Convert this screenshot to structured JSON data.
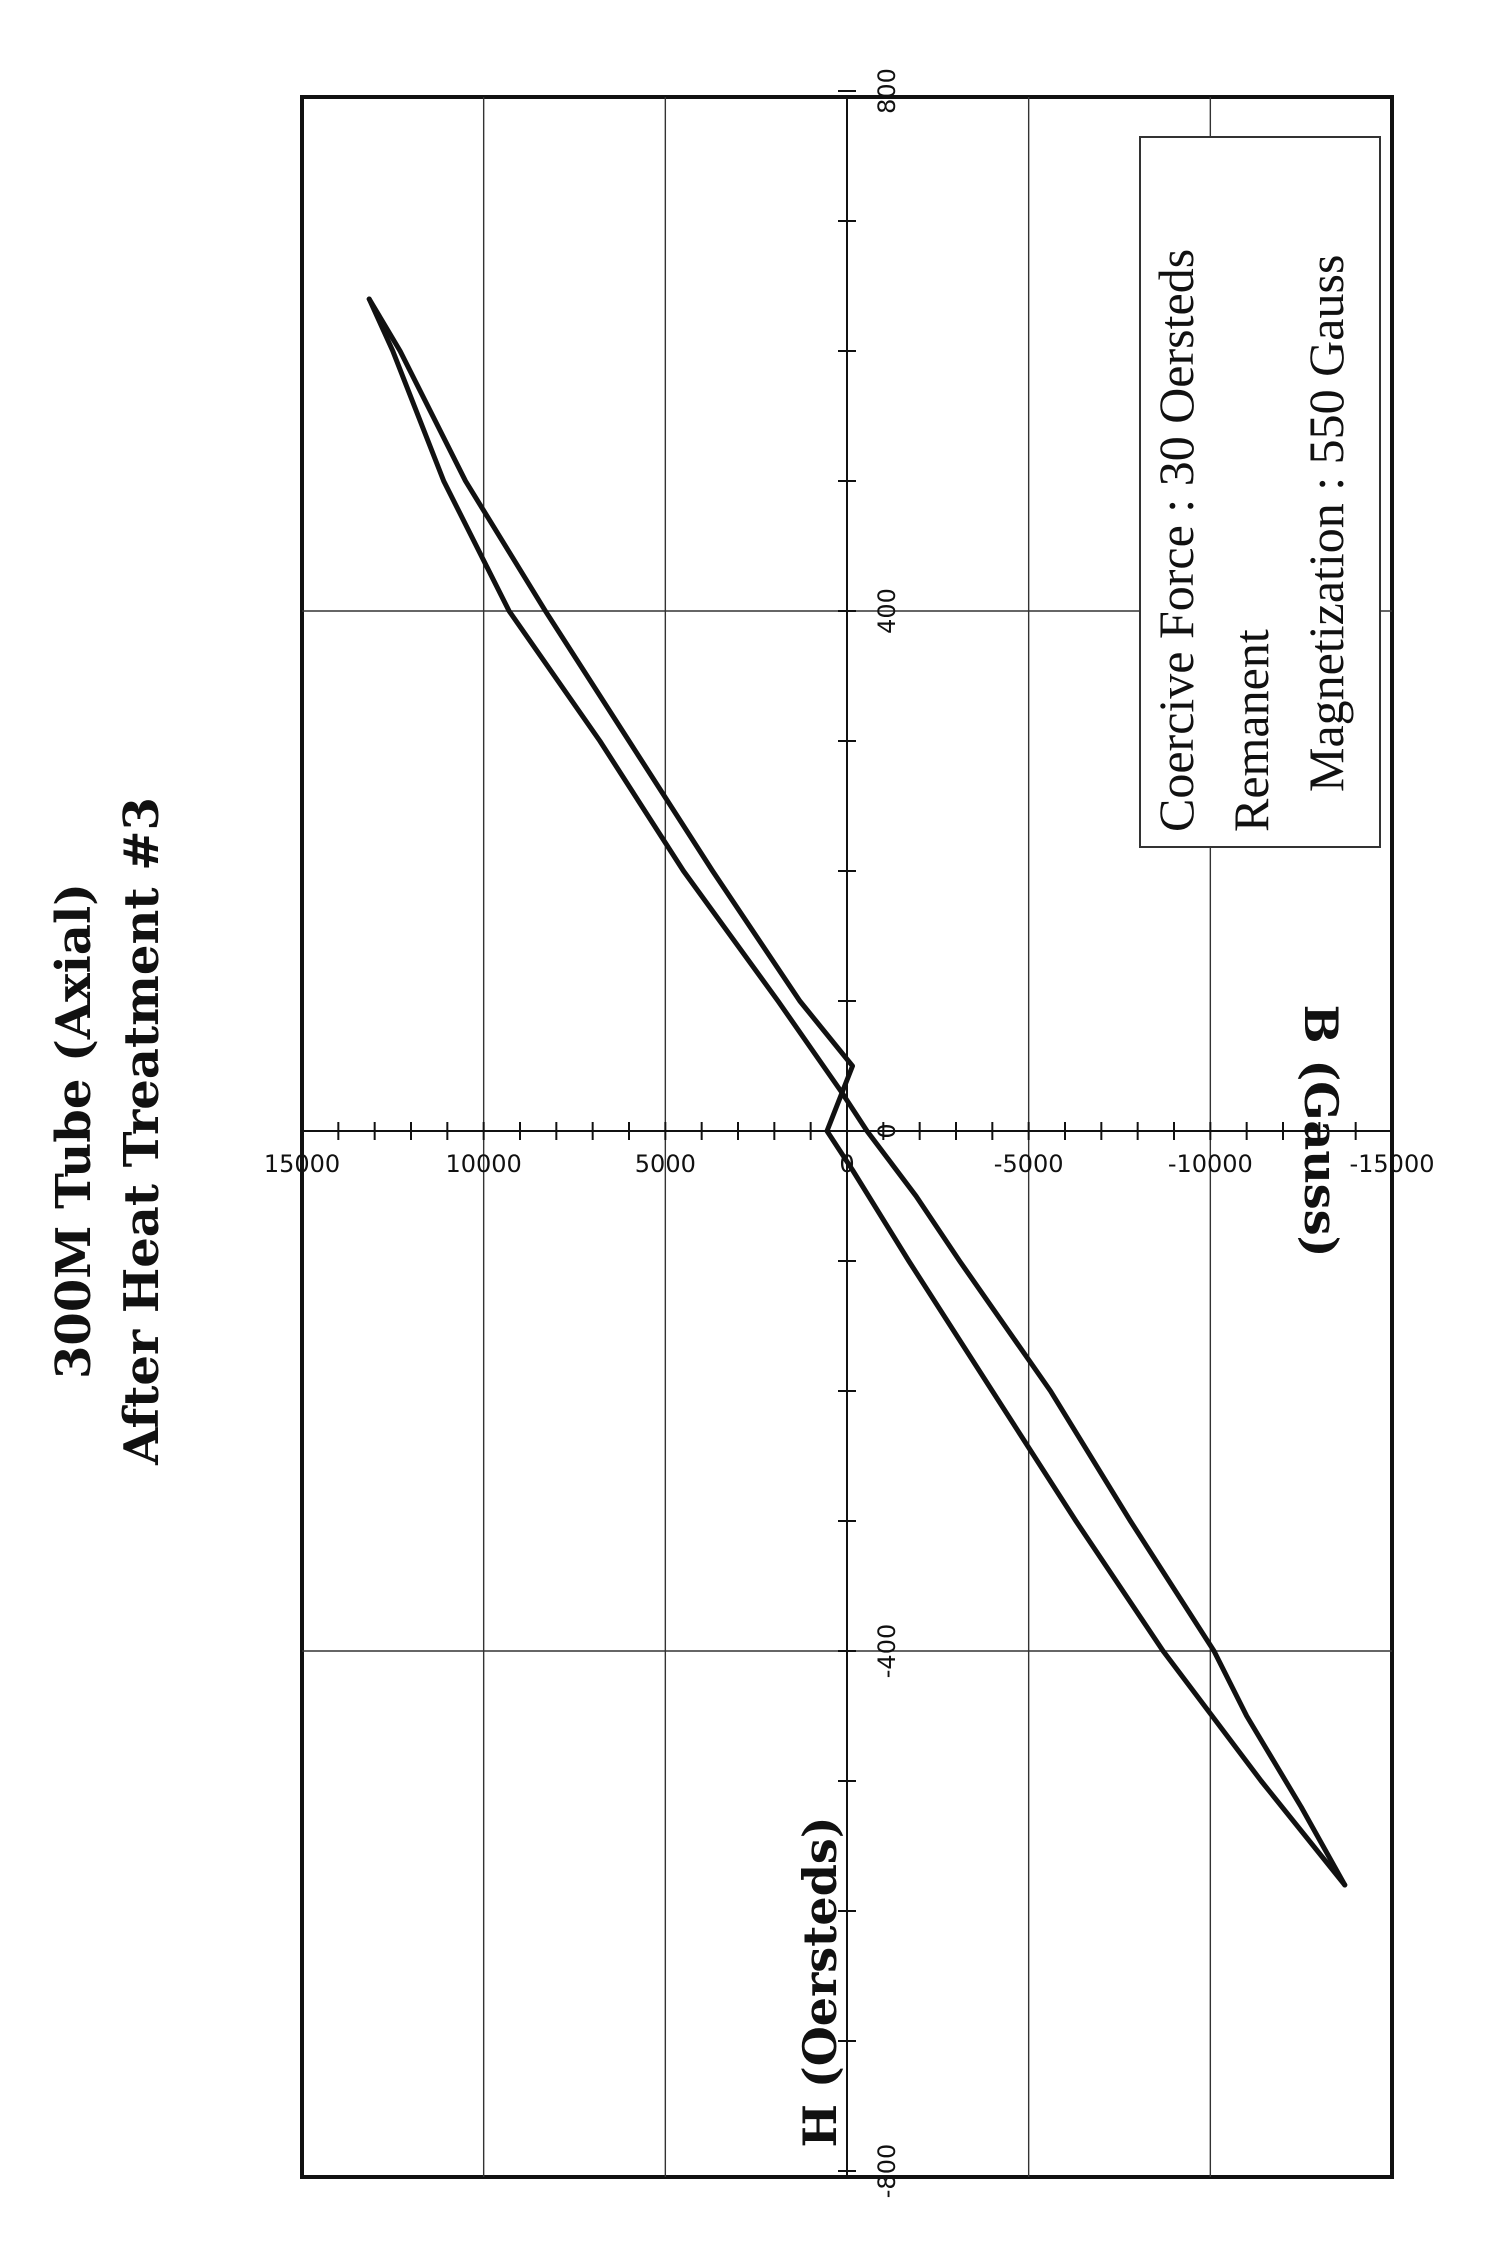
{
  "chart_data": {
    "type": "line",
    "title_lines": [
      "300M Tube (Axial)",
      "After Heat Treatment #3"
    ],
    "xlabel": "H (Oersteds)",
    "ylabel": "B (Gauss)",
    "xlim": [
      -800,
      800
    ],
    "ylim": [
      -15000,
      15000
    ],
    "x_ticks": [
      "-800",
      "-400",
      "0",
      "400",
      "800"
    ],
    "y_ticks": [
      "15000",
      "10000",
      "5000",
      "0",
      "-5000",
      "-10000",
      "-15000"
    ],
    "grid": true,
    "legend_position": "top-right",
    "annotation_lines": [
      "Coercive Force : 30 Oersteds",
      "Remanent",
      "Magnetization : 550 Gauss"
    ],
    "series": [
      {
        "branch": "upper",
        "x": [
          -580,
          -520,
          -450,
          -400,
          -300,
          -200,
          -100,
          -50,
          0,
          30,
          100,
          200,
          300,
          400,
          500,
          600,
          640
        ],
        "y": [
          -13700,
          -12500,
          -11000,
          -10100,
          -7800,
          -5600,
          -3100,
          -1900,
          -550,
          150,
          1900,
          4500,
          6800,
          9300,
          11100,
          12500,
          13150
        ]
      },
      {
        "branch": "lower",
        "x": [
          640,
          600,
          500,
          400,
          300,
          200,
          100,
          50,
          0,
          -30,
          -100,
          -200,
          -300,
          -400,
          -500,
          -580
        ],
        "y": [
          13150,
          12300,
          10500,
          8300,
          6000,
          3700,
          1300,
          -150,
          550,
          -150,
          -1700,
          -4000,
          -6300,
          -8700,
          -11400,
          -13700
        ]
      }
    ]
  }
}
